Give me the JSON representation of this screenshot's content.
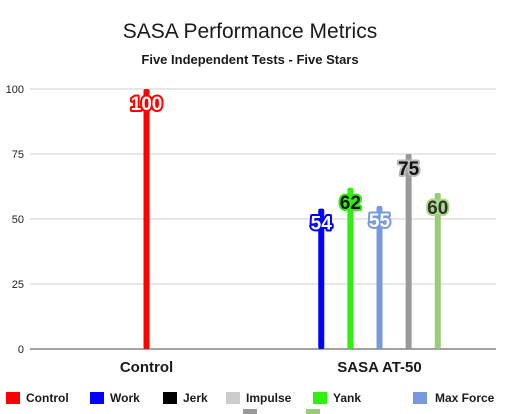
{
  "chart_data": {
    "type": "bar",
    "title": "SASA Performance Metrics",
    "subtitle": "Five Independent Tests - Five Stars",
    "categories": [
      "Control",
      "SASA AT-50"
    ],
    "ylim": [
      0,
      100
    ],
    "yticks": [
      0,
      25,
      50,
      75,
      100
    ],
    "grid": true,
    "legend_position": "bottom",
    "series": [
      {
        "name": "Control",
        "color": "#ff0000",
        "values": [
          100,
          null
        ]
      },
      {
        "name": "Work",
        "color": "#0000ff",
        "values": [
          null,
          54
        ]
      },
      {
        "name": "Jerk",
        "color": "#000000",
        "values": [
          null,
          null
        ]
      },
      {
        "name": "Impulse",
        "color": "#cccccc",
        "values": [
          null,
          null
        ]
      },
      {
        "name": "Yank",
        "color": "#33ee11",
        "values": [
          null,
          62
        ]
      },
      {
        "name": "Max Force",
        "color": "#7799dd",
        "values": [
          null,
          55
        ]
      },
      {
        "name": "",
        "color": "#999999",
        "values": [
          null,
          75
        ]
      },
      {
        "name": "",
        "color": "#99cc77",
        "values": [
          null,
          60
        ]
      }
    ]
  }
}
